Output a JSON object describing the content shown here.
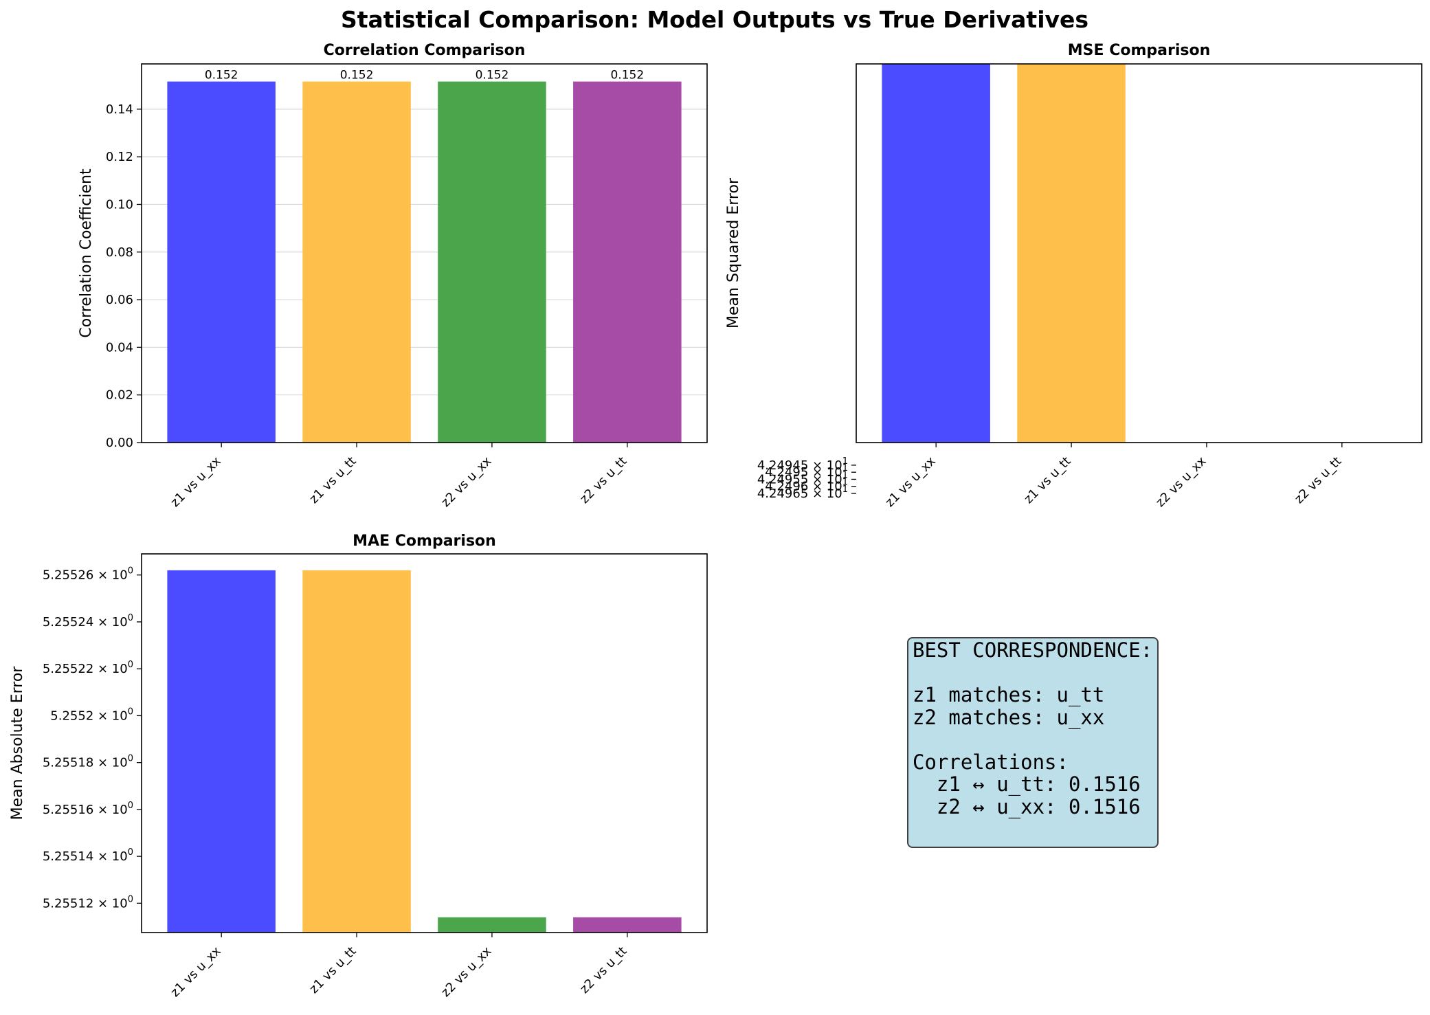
{
  "suptitle": "Statistical Comparison: Model Outputs vs True Derivatives",
  "chart_data": [
    {
      "type": "bar",
      "title": "Correlation Comparison",
      "xlabel": "",
      "ylabel": "Correlation Coefficient",
      "categories": [
        "z1 vs u_xx",
        "z1 vs u_tt",
        "z2 vs u_xx",
        "z2 vs u_tt"
      ],
      "values": [
        0.1516,
        0.1516,
        0.1516,
        0.1516
      ],
      "data_labels": [
        "0.152",
        "0.152",
        "0.152",
        "0.152"
      ],
      "colors": [
        "#4b4bff",
        "#ffbf4b",
        "#4ba64b",
        "#a64ba6"
      ],
      "ylim": [
        0,
        0.159
      ],
      "yticks": [
        0,
        0.02,
        0.04,
        0.06,
        0.08,
        0.1,
        0.12,
        0.14
      ],
      "ytick_labels": [
        "0.00",
        "0.02",
        "0.04",
        "0.06",
        "0.08",
        "0.10",
        "0.12",
        "0.14"
      ],
      "scale": "linear",
      "grid": true
    },
    {
      "type": "bar",
      "title": "MSE Comparison",
      "xlabel": "",
      "ylabel": "Mean Squared Error",
      "categories": [
        "z1 vs u_xx",
        "z1 vs u_tt",
        "z2 vs u_xx",
        "z2 vs u_tt"
      ],
      "values": [
        42.49651,
        42.49651,
        42.49938,
        42.49938
      ],
      "colors": [
        "#4b4bff",
        "#ffbf4b",
        "#4ba64b",
        "#a64ba6"
      ],
      "ylim": [
        42.49929,
        42.49661
      ],
      "yticks": [
        42.49965,
        42.4996,
        42.49955,
        42.4995,
        42.49945
      ],
      "ytick_mantissas": [
        "4.24965",
        "4.2496",
        "4.24955",
        "4.2495",
        "4.24945"
      ],
      "ytick_exponent": "1",
      "scale": "log",
      "grid": false
    },
    {
      "type": "bar",
      "title": "MAE Comparison",
      "xlabel": "",
      "ylabel": "Mean Absolute Error",
      "categories": [
        "z1 vs u_xx",
        "z1 vs u_tt",
        "z2 vs u_xx",
        "z2 vs u_tt"
      ],
      "values": [
        5.255262,
        5.255262,
        5.255114,
        5.255114
      ],
      "colors": [
        "#4b4bff",
        "#ffbf4b",
        "#4ba64b",
        "#a64ba6"
      ],
      "ylim": [
        5.2551075,
        5.255269
      ],
      "yticks": [
        5.25526,
        5.25524,
        5.25522,
        5.2552,
        5.25518,
        5.25516,
        5.25514,
        5.25512
      ],
      "ytick_mantissas": [
        "5.25526",
        "5.25524",
        "5.25522",
        "5.2552",
        "5.25518",
        "5.25516",
        "5.25514",
        "5.25512"
      ],
      "ytick_exponent": "0",
      "scale": "log",
      "grid": false
    }
  ],
  "best": {
    "text": "BEST CORRESPONDENCE:\n\nz1 matches: u_tt\nz2 matches: u_xx\n\nCorrelations:\n  z1 ↔ u_tt: 0.1516\n  z2 ↔ u_xx: 0.1516"
  }
}
